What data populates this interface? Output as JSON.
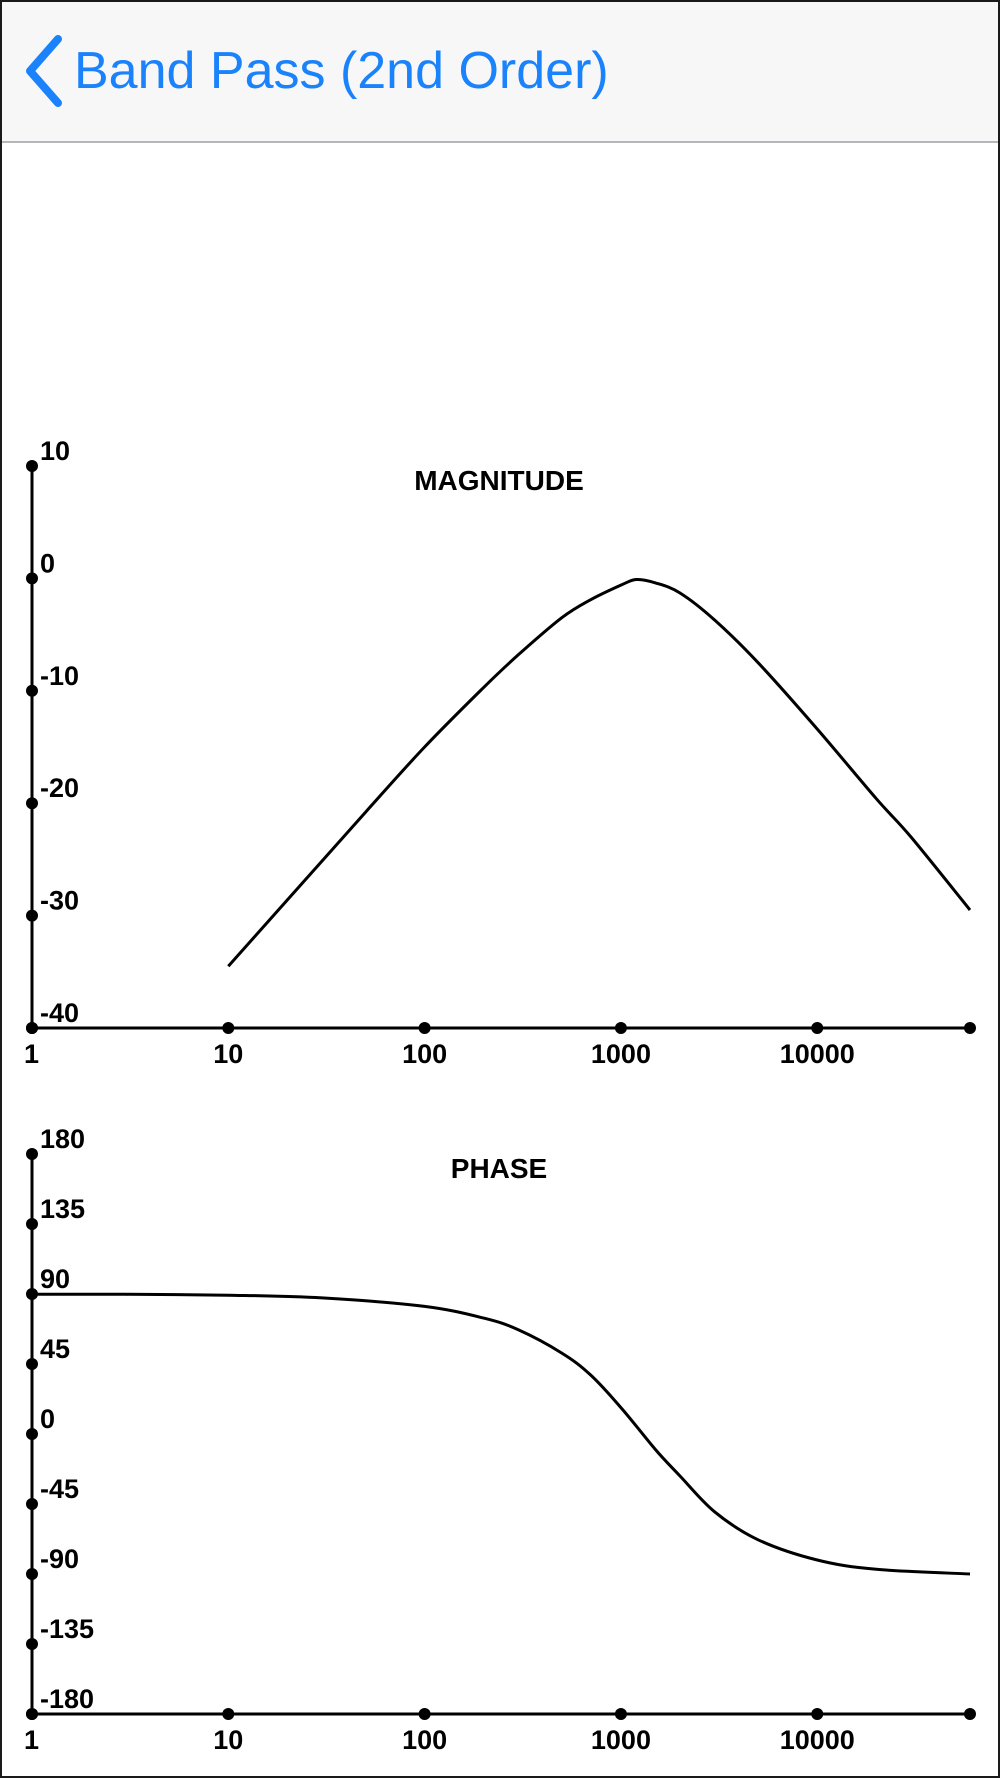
{
  "navbar": {
    "back_icon": "chevron-left-icon",
    "title": "Band Pass (2nd Order)",
    "accent_color": "#1a82fb"
  },
  "chart_data": [
    {
      "type": "line",
      "title": "MAGNITUDE",
      "xlabel": "",
      "ylabel": "",
      "x_scale": "log",
      "xlim": [
        1,
        60000
      ],
      "ylim": [
        -40,
        10
      ],
      "x_ticks": [
        1,
        10,
        100,
        1000,
        10000,
        60000
      ],
      "x_tick_labels": [
        "1",
        "10",
        "100",
        "1000",
        "10000",
        ""
      ],
      "y_ticks": [
        10,
        0,
        -10,
        -20,
        -30,
        -40
      ],
      "y_tick_labels": [
        "10",
        "0",
        "-10",
        "-20",
        "-30",
        "-40"
      ],
      "grid": false,
      "series": [
        {
          "x": [
            10,
            20,
            50,
            100,
            200,
            300,
            500,
            700,
            1000,
            1200,
            1500,
            2000,
            3000,
            5000,
            10000,
            20000,
            30000,
            60000
          ],
          "y": [
            -34.5,
            -28.6,
            -20.8,
            -15.0,
            -9.7,
            -6.8,
            -3.5,
            -1.9,
            -0.6,
            -0.1,
            -0.4,
            -1.3,
            -3.7,
            -7.5,
            -13.4,
            -19.6,
            -23.0,
            -29.5
          ]
        }
      ]
    },
    {
      "type": "line",
      "title": "PHASE",
      "xlabel": "",
      "ylabel": "",
      "x_scale": "log",
      "xlim": [
        1,
        60000
      ],
      "ylim": [
        -180,
        180
      ],
      "x_ticks": [
        1,
        10,
        100,
        1000,
        10000,
        60000
      ],
      "x_tick_labels": [
        "1",
        "10",
        "100",
        "1000",
        "10000",
        ""
      ],
      "y_ticks": [
        180,
        135,
        90,
        45,
        0,
        -45,
        -90,
        -135,
        -180
      ],
      "y_tick_labels": [
        "180",
        "135",
        "90",
        "45",
        "0",
        "-45",
        "-90",
        "-135",
        "-180"
      ],
      "grid": false,
      "series": [
        {
          "x": [
            1,
            3,
            10,
            30,
            100,
            200,
            300,
            500,
            700,
            1000,
            1500,
            2000,
            3000,
            5000,
            10000,
            20000,
            60000
          ],
          "y": [
            89.9,
            89.8,
            89.2,
            87.5,
            82.0,
            74.5,
            67.0,
            52.0,
            38.0,
            17.0,
            -10.0,
            -27.0,
            -50.0,
            -68.0,
            -81.0,
            -87.0,
            -90.0
          ]
        }
      ]
    }
  ]
}
